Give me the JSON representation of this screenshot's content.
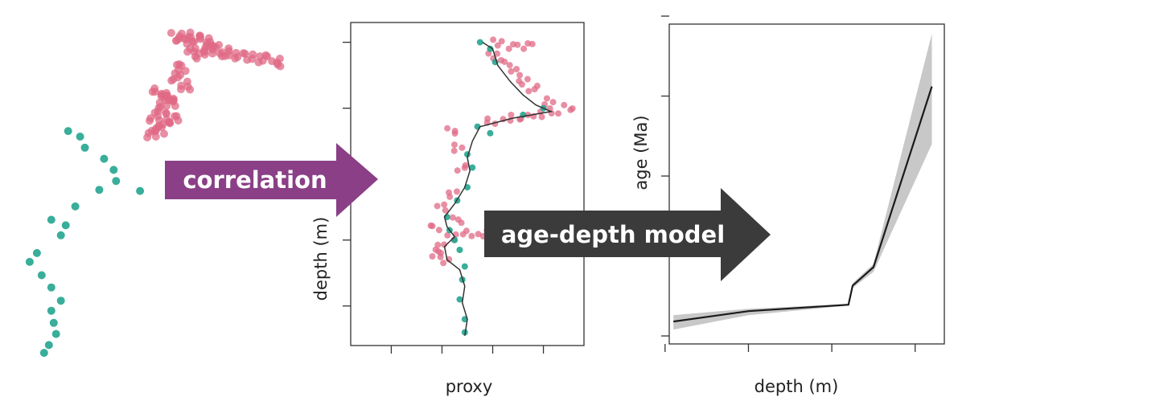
{
  "colors": {
    "pink": "#e06a86",
    "teal": "#23a58f",
    "purple_arrow": "#8a3f86",
    "dark_arrow": "#3b3b3b",
    "band": "#c8c8c8",
    "line": "#1a1a1a"
  },
  "arrows": {
    "correlation": "correlation",
    "age_depth": "age-depth model"
  },
  "chart_data": [
    {
      "type": "scatter",
      "title": "",
      "xlabel": "",
      "ylabel": "",
      "axes_visible": false,
      "series": [
        {
          "color": "pink",
          "points": [
            [
              2.0,
              1.0
            ],
            [
              2.4,
              0.9
            ],
            [
              2.8,
              1.2
            ],
            [
              3.2,
              1.4
            ],
            [
              3.6,
              1.8
            ],
            [
              4.0,
              2.4
            ],
            [
              4.4,
              2.6
            ],
            [
              5.0,
              2.8
            ],
            [
              5.6,
              3.0
            ],
            [
              6.2,
              3.3
            ],
            [
              2.6,
              2.0
            ],
            [
              3.0,
              2.6
            ],
            [
              3.4,
              2.2
            ],
            [
              2.2,
              3.8
            ],
            [
              2.0,
              4.6
            ],
            [
              2.4,
              5.4
            ],
            [
              1.2,
              6.0
            ],
            [
              1.5,
              6.6
            ],
            [
              1.8,
              7.0
            ],
            [
              1.4,
              7.6
            ],
            [
              1.1,
              8.2
            ],
            [
              1.6,
              8.8
            ],
            [
              1.3,
              9.4
            ],
            [
              1.0,
              9.8
            ],
            [
              1.9,
              8.4
            ],
            [
              1.7,
              6.4
            ]
          ]
        },
        {
          "color": "teal",
          "points": [
            [
              -2.5,
              9.5
            ],
            [
              -2.0,
              10.0
            ],
            [
              -1.8,
              11.0
            ],
            [
              -1.0,
              12.0
            ],
            [
              -0.6,
              13.0
            ],
            [
              -0.5,
              14.0
            ],
            [
              -1.2,
              14.8
            ],
            [
              0.5,
              14.9
            ],
            [
              -2.2,
              16.3
            ],
            [
              -3.2,
              17.5
            ],
            [
              -2.6,
              18.0
            ],
            [
              -2.8,
              18.9
            ],
            [
              -3.8,
              20.5
            ],
            [
              -4.1,
              21.3
            ],
            [
              -3.6,
              22.5
            ],
            [
              -3.2,
              23.6
            ],
            [
              -2.8,
              24.8
            ],
            [
              -3.2,
              25.7
            ],
            [
              -3.1,
              26.8
            ],
            [
              -3.0,
              27.8
            ],
            [
              -3.3,
              28.8
            ],
            [
              -3.5,
              29.5
            ]
          ]
        }
      ]
    },
    {
      "type": "scatter",
      "title": "",
      "xlabel": "proxy",
      "ylabel": "depth (m)",
      "xlim": [
        -2.3,
        2.3
      ],
      "ylim": [
        -0.3,
        4.6
      ],
      "x_ticks": [
        -1.5,
        -0.5,
        0.5,
        1.5
      ],
      "y_ticks": [
        0,
        1,
        2,
        3,
        4
      ],
      "tick_labels_visible": false,
      "series": [
        {
          "color": "pink",
          "points": [
            [
              0.6,
              0.0
            ],
            [
              0.9,
              0.05
            ],
            [
              1.2,
              0.05
            ],
            [
              0.5,
              0.2
            ],
            [
              0.75,
              0.3
            ],
            [
              0.95,
              0.45
            ],
            [
              1.1,
              0.6
            ],
            [
              1.3,
              0.7
            ],
            [
              1.6,
              0.9
            ],
            [
              2.0,
              1.0
            ],
            [
              1.7,
              1.05
            ],
            [
              1.4,
              1.1
            ],
            [
              1.1,
              1.15
            ],
            [
              0.8,
              1.15
            ],
            [
              0.45,
              1.2
            ],
            [
              -0.3,
              1.35
            ],
            [
              -0.2,
              1.6
            ],
            [
              -0.1,
              1.9
            ],
            [
              -0.3,
              2.3
            ],
            [
              -0.5,
              2.5
            ],
            [
              -0.65,
              2.8
            ],
            [
              -0.3,
              2.95
            ],
            [
              -0.55,
              3.1
            ],
            [
              -0.6,
              3.2
            ],
            [
              -0.45,
              3.3
            ],
            [
              -0.2,
              2.7
            ],
            [
              0.0,
              2.9
            ],
            [
              0.3,
              2.9
            ]
          ]
        },
        {
          "color": "teal",
          "points": [
            [
              0.25,
              0.0
            ],
            [
              0.45,
              0.1
            ],
            [
              0.55,
              0.3
            ],
            [
              1.5,
              1.0
            ],
            [
              1.1,
              1.1
            ],
            [
              0.2,
              1.28
            ],
            [
              0.45,
              1.38
            ],
            [
              0.0,
              1.7
            ],
            [
              0.1,
              1.9
            ],
            [
              0.0,
              2.2
            ],
            [
              -0.2,
              2.4
            ],
            [
              -0.4,
              2.65
            ],
            [
              -0.35,
              2.85
            ],
            [
              -0.25,
              3.0
            ],
            [
              -0.15,
              3.15
            ],
            [
              -0.05,
              3.4
            ],
            [
              -0.1,
              3.6
            ],
            [
              -0.15,
              3.9
            ],
            [
              -0.05,
              4.2
            ],
            [
              -0.05,
              4.4
            ]
          ]
        }
      ],
      "curve": [
        [
          0.3,
          0.0
        ],
        [
          0.5,
          0.1
        ],
        [
          0.6,
          0.35
        ],
        [
          0.85,
          0.6
        ],
        [
          1.1,
          0.8
        ],
        [
          1.35,
          0.95
        ],
        [
          1.65,
          1.05
        ],
        [
          0.9,
          1.15
        ],
        [
          0.25,
          1.28
        ],
        [
          0.1,
          1.5
        ],
        [
          0.0,
          1.75
        ],
        [
          0.05,
          1.95
        ],
        [
          -0.05,
          2.2
        ],
        [
          -0.25,
          2.45
        ],
        [
          -0.45,
          2.65
        ],
        [
          -0.4,
          2.8
        ],
        [
          -0.25,
          2.95
        ],
        [
          -0.45,
          3.1
        ],
        [
          -0.4,
          3.3
        ],
        [
          -0.15,
          3.45
        ],
        [
          -0.05,
          3.7
        ],
        [
          -0.1,
          3.95
        ],
        [
          0.0,
          4.2
        ],
        [
          -0.05,
          4.45
        ]
      ]
    },
    {
      "type": "line",
      "title": "",
      "xlabel": "depth (m)",
      "ylabel": "age (Ma)",
      "xlim": [
        0.05,
        3.35
      ],
      "ylim": [
        -0.1,
        3.9
      ],
      "x_ticks": [
        0,
        1,
        2,
        3
      ],
      "y_ticks": [
        0,
        1,
        2,
        3,
        4
      ],
      "tick_labels_visible": false,
      "series": [
        {
          "line": [
            [
              0.1,
              0.18
            ],
            [
              1.0,
              0.31
            ],
            [
              2.2,
              0.39
            ],
            [
              2.25,
              0.63
            ],
            [
              2.5,
              0.86
            ],
            [
              3.2,
              3.12
            ]
          ],
          "upper": [
            [
              0.1,
              0.26
            ],
            [
              1.0,
              0.34
            ],
            [
              2.2,
              0.4
            ],
            [
              2.25,
              0.66
            ],
            [
              2.5,
              0.9
            ],
            [
              3.2,
              3.78
            ]
          ],
          "lower": [
            [
              0.1,
              0.08
            ],
            [
              1.0,
              0.26
            ],
            [
              2.2,
              0.38
            ],
            [
              2.25,
              0.6
            ],
            [
              2.5,
              0.8
            ],
            [
              3.2,
              2.4
            ]
          ]
        }
      ]
    }
  ]
}
